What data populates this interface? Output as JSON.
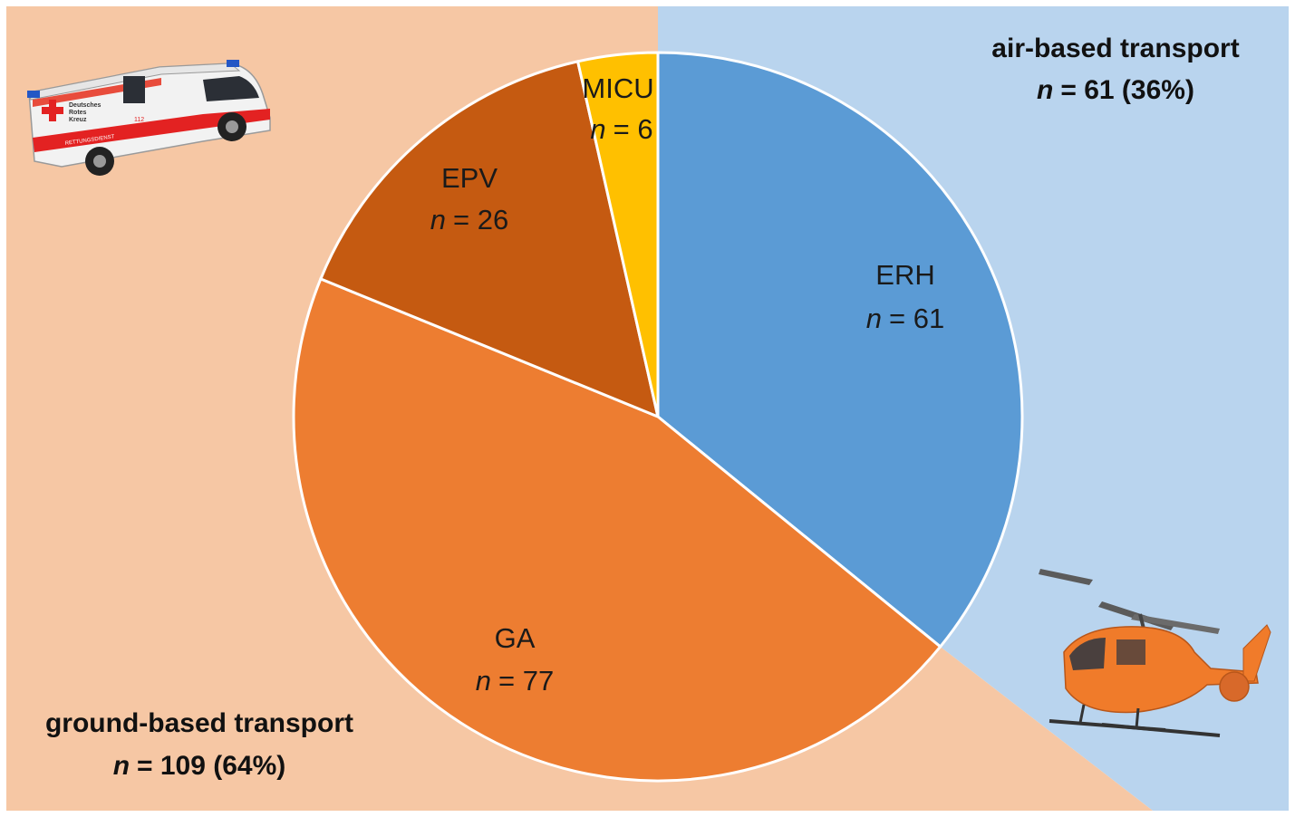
{
  "colors": {
    "ground_bg": "#F6C7A4",
    "air_bg": "#B9D4EE",
    "border": "#ffffff"
  },
  "icons": {
    "ambulance": "ambulance-icon",
    "helicopter": "helicopter-icon"
  },
  "ambulance_text": {
    "line1": "Deutsches",
    "line2": "Rotes",
    "line3": "Kreuz",
    "side": "RETTUNGSDIENST",
    "number": "112"
  },
  "chart_data": {
    "type": "pie",
    "start": "12 o'clock, clockwise",
    "slices": [
      {
        "label": "ERH",
        "value": 61,
        "n_text": "= 61",
        "color": "#5B9BD5"
      },
      {
        "label": "GA",
        "value": 77,
        "n_text": "= 77",
        "color": "#ED7D31"
      },
      {
        "label": "EPV",
        "value": 26,
        "n_text": "= 26",
        "color": "#C55A11"
      },
      {
        "label": "MICU",
        "value": 6,
        "n_text": "= 6",
        "color": "#FFC000"
      }
    ],
    "groups": {
      "air": {
        "title": "air-based transport",
        "n_text": "= 61 (36%)"
      },
      "ground": {
        "title": "ground-based transport",
        "n_text": "= 109 (64%)"
      }
    },
    "n_symbol": "n"
  }
}
